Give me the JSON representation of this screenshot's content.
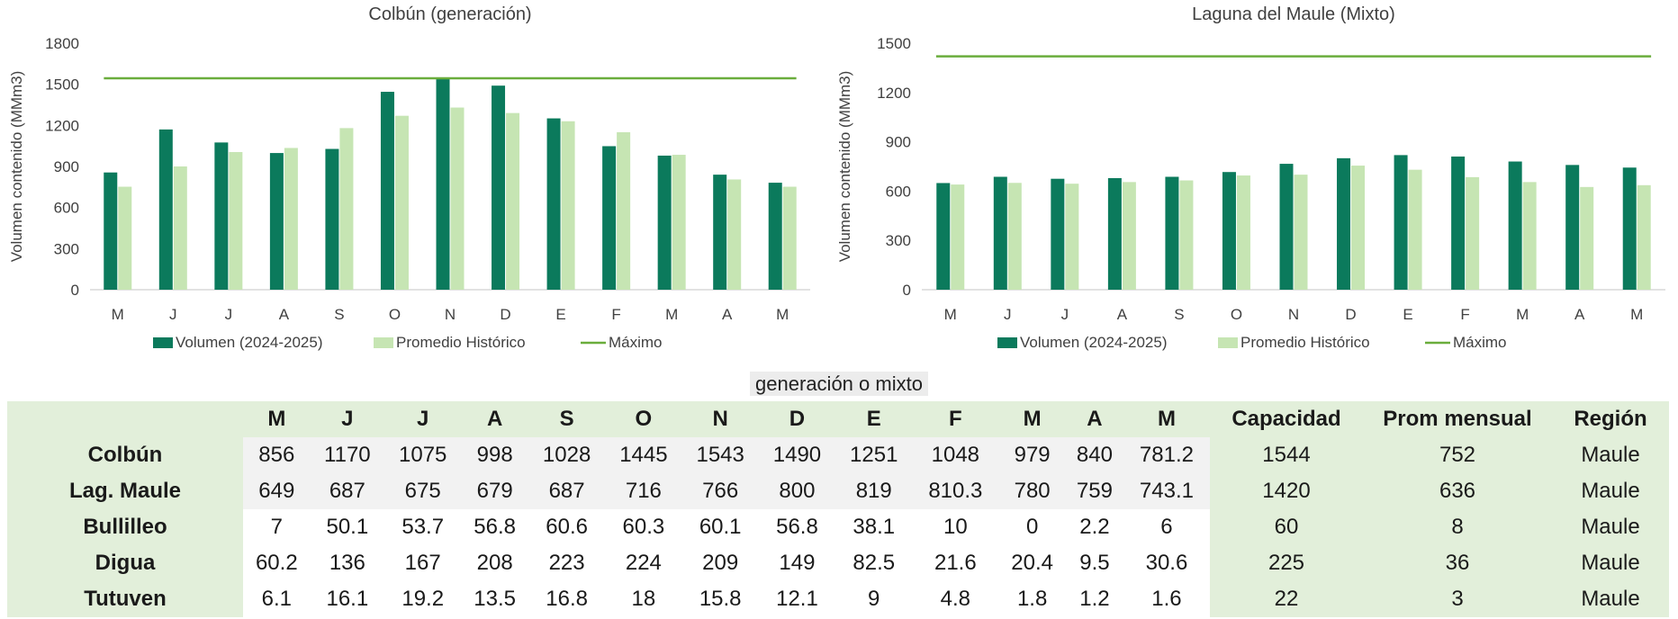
{
  "colors": {
    "volumen": "#0b7a5c",
    "promedio": "#c6e5b3",
    "maximo": "#6aad3c",
    "table_green": "#e2efda"
  },
  "chart_data": [
    {
      "type": "bar",
      "title": "Colbún (generación)",
      "ylabel": "Volumen contenido (MMm3)",
      "xlabel": "",
      "categories": [
        "M",
        "J",
        "J",
        "A",
        "S",
        "O",
        "N",
        "D",
        "E",
        "F",
        "M",
        "A",
        "M"
      ],
      "ylim": [
        0,
        1800
      ],
      "yticks": [
        0,
        300,
        600,
        900,
        1200,
        1500,
        1800
      ],
      "series": [
        {
          "name": "Volumen (2024-2025)",
          "values": [
            856,
            1170,
            1075,
            998,
            1028,
            1445,
            1543,
            1490,
            1251,
            1048,
            979,
            840,
            781.2
          ]
        },
        {
          "name": "Promedio Histórico",
          "values": [
            752,
            900,
            1005,
            1035,
            1180,
            1270,
            1330,
            1290,
            1230,
            1150,
            985,
            805,
            752
          ]
        }
      ],
      "line": {
        "name": "Máximo",
        "value": 1544
      },
      "legend": "bottom"
    },
    {
      "type": "bar",
      "title": "Laguna del Maule (Mixto)",
      "ylabel": "Volumen contenido (MMm3)",
      "xlabel": "",
      "categories": [
        "M",
        "J",
        "J",
        "A",
        "S",
        "O",
        "N",
        "D",
        "E",
        "F",
        "M",
        "A",
        "M"
      ],
      "ylim": [
        0,
        1500
      ],
      "yticks": [
        0,
        300,
        600,
        900,
        1200,
        1500
      ],
      "series": [
        {
          "name": "Volumen (2024-2025)",
          "values": [
            649,
            687,
            675,
            679,
            687,
            716,
            766,
            800,
            819,
            810.3,
            780,
            759,
            743.1
          ]
        },
        {
          "name": "Promedio Histórico",
          "values": [
            640,
            650,
            645,
            655,
            665,
            695,
            700,
            755,
            730,
            685,
            655,
            625,
            636
          ]
        }
      ],
      "line": {
        "name": "Máximo",
        "value": 1420
      },
      "legend": "bottom"
    }
  ],
  "section_label": "generación o mixto",
  "table": {
    "months": [
      "M",
      "J",
      "J",
      "A",
      "S",
      "O",
      "N",
      "D",
      "E",
      "F",
      "M",
      "A",
      "M"
    ],
    "extra_headers": [
      "Capacidad",
      "Prom mensual",
      "Región"
    ],
    "rows": [
      {
        "name": "Colbún",
        "values": [
          "856",
          "1170",
          "1075",
          "998",
          "1028",
          "1445",
          "1543",
          "1490",
          "1251",
          "1048",
          "979",
          "840",
          "781.2"
        ],
        "capacidad": "1544",
        "prom": "752",
        "region": "Maule"
      },
      {
        "name": "Lag. Maule",
        "values": [
          "649",
          "687",
          "675",
          "679",
          "687",
          "716",
          "766",
          "800",
          "819",
          "810.3",
          "780",
          "759",
          "743.1"
        ],
        "capacidad": "1420",
        "prom": "636",
        "region": "Maule"
      },
      {
        "name": "Bullilleo",
        "values": [
          "7",
          "50.1",
          "53.7",
          "56.8",
          "60.6",
          "60.3",
          "60.1",
          "56.8",
          "38.1",
          "10",
          "0",
          "2.2",
          "6"
        ],
        "capacidad": "60",
        "prom": "8",
        "region": "Maule"
      },
      {
        "name": "Digua",
        "values": [
          "60.2",
          "136",
          "167",
          "208",
          "223",
          "224",
          "209",
          "149",
          "82.5",
          "21.6",
          "20.4",
          "9.5",
          "30.6"
        ],
        "capacidad": "225",
        "prom": "36",
        "region": "Maule"
      },
      {
        "name": "Tutuven",
        "values": [
          "6.1",
          "16.1",
          "19.2",
          "13.5",
          "16.8",
          "18",
          "15.8",
          "12.1",
          "9",
          "4.8",
          "1.8",
          "1.2",
          "1.6"
        ],
        "capacidad": "22",
        "prom": "3",
        "region": "Maule"
      }
    ]
  }
}
